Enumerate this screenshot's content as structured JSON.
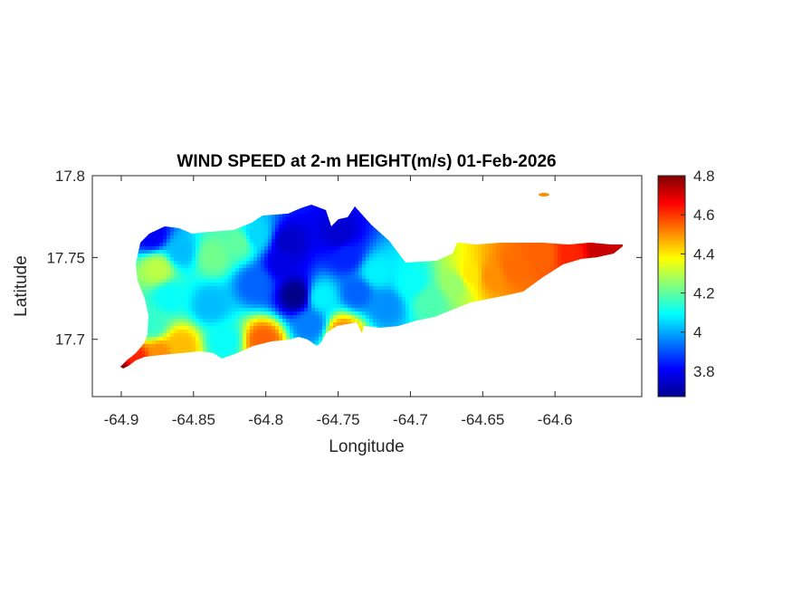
{
  "chart_data": {
    "type": "heatmap",
    "title": "WIND SPEED at 2-m HEIGHT(m/s) 01-Feb-2026",
    "xlabel": "Longitude",
    "ylabel": "Latitude",
    "xlim": [
      -64.92,
      -64.54
    ],
    "ylim": [
      17.665,
      17.8
    ],
    "xticks": [
      -64.9,
      -64.85,
      -64.8,
      -64.75,
      -64.7,
      -64.65,
      -64.6
    ],
    "xtick_labels": [
      "-64.9",
      "-64.85",
      "-64.8",
      "-64.75",
      "-64.7",
      "-64.65",
      "-64.6"
    ],
    "yticks": [
      17.7,
      17.75,
      17.8
    ],
    "ytick_labels": [
      "17.7",
      "17.75",
      "17.8"
    ],
    "colormap": "jet",
    "clim": [
      3.67,
      4.8
    ],
    "colorbar_ticks": [
      3.8,
      4,
      4.2,
      4.4,
      4.6,
      4.8
    ],
    "colorbar_tick_labels": [
      "3.8",
      "4",
      "4.2",
      "4.4",
      "4.6",
      "4.8"
    ],
    "grid": false,
    "samples": [
      {
        "lon": -64.9,
        "lat": 17.68,
        "value": 4.8
      },
      {
        "lon": -64.89,
        "lat": 17.688,
        "value": 4.62
      },
      {
        "lon": -64.875,
        "lat": 17.692,
        "value": 4.5
      },
      {
        "lon": -64.86,
        "lat": 17.697,
        "value": 4.45
      },
      {
        "lon": -64.88,
        "lat": 17.71,
        "value": 4.15
      },
      {
        "lon": -64.876,
        "lat": 17.744,
        "value": 4.3
      },
      {
        "lon": -64.868,
        "lat": 17.727,
        "value": 4.1
      },
      {
        "lon": -64.88,
        "lat": 17.765,
        "value": 3.8
      },
      {
        "lon": -64.86,
        "lat": 17.755,
        "value": 4.02
      },
      {
        "lon": -64.838,
        "lat": 17.752,
        "value": 4.22
      },
      {
        "lon": -64.82,
        "lat": 17.76,
        "value": 4.2
      },
      {
        "lon": -64.808,
        "lat": 17.765,
        "value": 4.05
      },
      {
        "lon": -64.84,
        "lat": 17.722,
        "value": 4.02
      },
      {
        "lon": -64.83,
        "lat": 17.7,
        "value": 4.1
      },
      {
        "lon": -64.803,
        "lat": 17.7,
        "value": 4.55
      },
      {
        "lon": -64.808,
        "lat": 17.735,
        "value": 3.92
      },
      {
        "lon": -64.79,
        "lat": 17.748,
        "value": 3.78
      },
      {
        "lon": -64.78,
        "lat": 17.728,
        "value": 3.68
      },
      {
        "lon": -64.786,
        "lat": 17.76,
        "value": 3.75
      },
      {
        "lon": -64.75,
        "lat": 17.765,
        "value": 3.76
      },
      {
        "lon": -64.745,
        "lat": 17.752,
        "value": 3.85
      },
      {
        "lon": -64.77,
        "lat": 17.71,
        "value": 3.95
      },
      {
        "lon": -64.763,
        "lat": 17.727,
        "value": 4.08
      },
      {
        "lon": -64.748,
        "lat": 17.705,
        "value": 4.5
      },
      {
        "lon": -64.738,
        "lat": 17.73,
        "value": 3.92
      },
      {
        "lon": -64.725,
        "lat": 17.742,
        "value": 4.08
      },
      {
        "lon": -64.718,
        "lat": 17.722,
        "value": 3.97
      },
      {
        "lon": -64.7,
        "lat": 17.735,
        "value": 4.1
      },
      {
        "lon": -64.688,
        "lat": 17.725,
        "value": 4.18
      },
      {
        "lon": -64.67,
        "lat": 17.735,
        "value": 4.26
      },
      {
        "lon": -64.66,
        "lat": 17.74,
        "value": 4.4
      },
      {
        "lon": -64.645,
        "lat": 17.74,
        "value": 4.5
      },
      {
        "lon": -64.63,
        "lat": 17.745,
        "value": 4.54
      },
      {
        "lon": -64.61,
        "lat": 17.752,
        "value": 4.55
      },
      {
        "lon": -64.59,
        "lat": 17.752,
        "value": 4.62
      },
      {
        "lon": -64.57,
        "lat": 17.755,
        "value": 4.72
      },
      {
        "lon": -64.623,
        "lat": 17.787,
        "value": 4.58
      }
    ]
  }
}
